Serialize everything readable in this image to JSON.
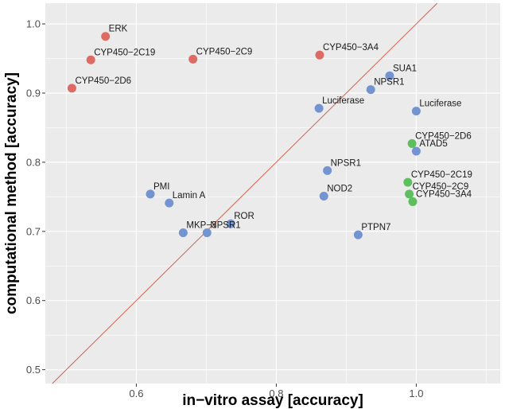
{
  "chart_data": {
    "type": "scatter",
    "title": "",
    "xlabel": "in−vitro assay [accuracy]",
    "ylabel": "computational method [accuracy]",
    "xlim": [
      0.47,
      1.12
    ],
    "ylim": [
      0.48,
      1.03
    ],
    "x_ticks": [
      0.6,
      0.8,
      1.0
    ],
    "x_tick_labels": [
      "0.6",
      "0.8",
      "1.0"
    ],
    "y_ticks": [
      0.5,
      0.6,
      0.7,
      0.8,
      0.9,
      1.0
    ],
    "y_tick_labels": [
      "0.5",
      "0.6",
      "0.7",
      "0.8",
      "0.9",
      "1.0"
    ],
    "grid": true,
    "panel_background": "#ebebeb",
    "grid_color": "#ffffff",
    "reference_line": {
      "kind": "y = x",
      "color": "#d6604d"
    },
    "colors": {
      "red": "#de6b63",
      "blue": "#7394d1",
      "green": "#5ebf5e"
    },
    "points": [
      {
        "label": "ERK",
        "x": 0.556,
        "y": 0.982,
        "color": "red"
      },
      {
        "label": "CYP450−2C19",
        "x": 0.535,
        "y": 0.948,
        "color": "red"
      },
      {
        "label": "CYP450−2C9",
        "x": 0.681,
        "y": 0.949,
        "color": "red"
      },
      {
        "label": "CYP450−3A4",
        "x": 0.862,
        "y": 0.955,
        "color": "red"
      },
      {
        "label": "CYP450−2D6",
        "x": 0.508,
        "y": 0.907,
        "color": "red"
      },
      {
        "label": "SUA1",
        "x": 0.962,
        "y": 0.925,
        "color": "blue"
      },
      {
        "label": "NPSR1",
        "x": 0.935,
        "y": 0.905,
        "color": "blue"
      },
      {
        "label": "Luciferase",
        "x": 0.861,
        "y": 0.878,
        "color": "blue"
      },
      {
        "label": "Luciferase",
        "x": 1.0,
        "y": 0.874,
        "color": "blue"
      },
      {
        "label": "ATAD5",
        "x": 1.0,
        "y": 0.816,
        "color": "blue"
      },
      {
        "label": "NPSR1",
        "x": 0.873,
        "y": 0.788,
        "color": "blue"
      },
      {
        "label": "NOD2",
        "x": 0.868,
        "y": 0.751,
        "color": "blue"
      },
      {
        "label": "PMI",
        "x": 0.62,
        "y": 0.754,
        "color": "blue"
      },
      {
        "label": "Lamin A",
        "x": 0.647,
        "y": 0.741,
        "color": "blue"
      },
      {
        "label": "ROR",
        "x": 0.735,
        "y": 0.711,
        "color": "blue"
      },
      {
        "label": "MKP−3",
        "x": 0.667,
        "y": 0.698,
        "color": "blue"
      },
      {
        "label": "NPSR1",
        "x": 0.701,
        "y": 0.698,
        "color": "blue"
      },
      {
        "label": "PTPN7",
        "x": 0.917,
        "y": 0.695,
        "color": "blue"
      },
      {
        "label": "CYP450−2D6",
        "x": 0.994,
        "y": 0.827,
        "color": "green"
      },
      {
        "label": "CYP450−2C19",
        "x": 0.988,
        "y": 0.771,
        "color": "green"
      },
      {
        "label": "CYP450−2C9",
        "x": 0.99,
        "y": 0.754,
        "color": "green"
      },
      {
        "label": "CYP450−3A4",
        "x": 0.995,
        "y": 0.743,
        "color": "green"
      }
    ]
  }
}
